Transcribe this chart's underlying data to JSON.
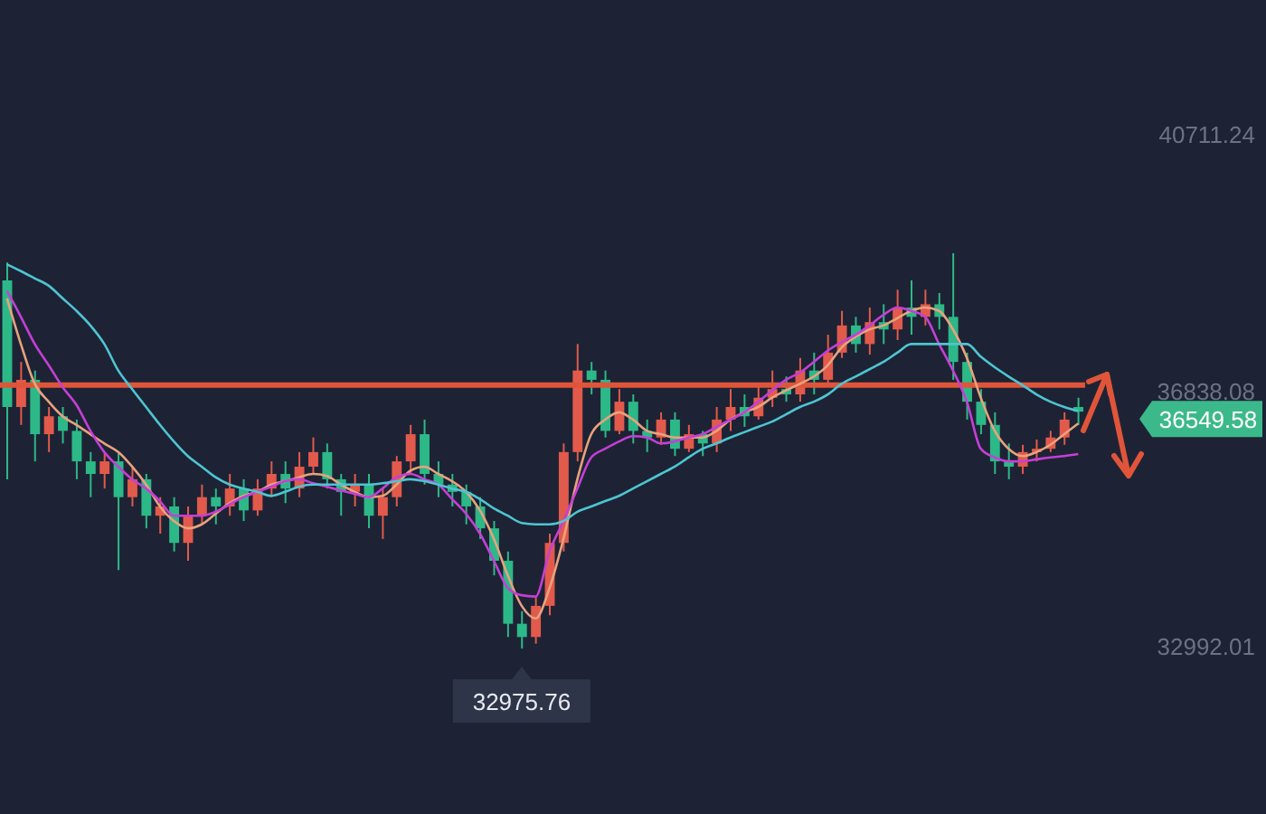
{
  "chart_data": {
    "type": "candlestick",
    "categories": [
      null,
      null,
      null,
      null,
      null,
      null,
      null,
      null,
      null,
      null,
      null,
      null,
      null,
      null,
      null,
      null,
      null,
      null,
      null,
      null,
      null,
      null,
      null,
      null,
      null,
      null,
      null,
      null,
      null,
      null,
      null,
      null,
      null,
      null,
      null,
      null,
      null,
      null,
      null,
      null,
      null,
      null,
      null,
      null,
      null,
      null,
      null,
      null,
      null,
      null,
      null,
      null,
      null,
      null,
      null,
      null,
      null,
      null,
      null,
      null,
      null,
      null,
      null,
      null,
      null,
      null,
      null,
      null,
      null,
      null,
      null,
      null,
      null,
      null,
      null,
      null,
      null,
      null
    ],
    "ohlc": [
      [
        38530,
        38800,
        35530,
        36620
      ],
      [
        36620,
        37300,
        36350,
        37030
      ],
      [
        37030,
        37170,
        35800,
        36210
      ],
      [
        36210,
        36620,
        35940,
        36480
      ],
      [
        36480,
        36620,
        36070,
        36260
      ],
      [
        36260,
        36430,
        35530,
        35800
      ],
      [
        35800,
        35940,
        35260,
        35610
      ],
      [
        35610,
        35940,
        35390,
        35800
      ],
      [
        35800,
        35940,
        34160,
        35260
      ],
      [
        35260,
        35720,
        35120,
        35530
      ],
      [
        35530,
        35610,
        34790,
        34980
      ],
      [
        34980,
        35260,
        34710,
        35120
      ],
      [
        35120,
        35260,
        34440,
        34570
      ],
      [
        34570,
        35120,
        34300,
        34980
      ],
      [
        34980,
        35450,
        34850,
        35260
      ],
      [
        35260,
        35390,
        34850,
        35120
      ],
      [
        35120,
        35610,
        34980,
        35390
      ],
      [
        35390,
        35530,
        34900,
        35060
      ],
      [
        35060,
        35530,
        34980,
        35390
      ],
      [
        35390,
        35800,
        35260,
        35610
      ],
      [
        35610,
        35800,
        35170,
        35390
      ],
      [
        35390,
        35940,
        35260,
        35720
      ],
      [
        35720,
        36160,
        35610,
        35940
      ],
      [
        35940,
        36070,
        35390,
        35530
      ],
      [
        35530,
        35610,
        34980,
        35340
      ],
      [
        35340,
        35610,
        35120,
        35450
      ],
      [
        35450,
        35610,
        34790,
        34980
      ],
      [
        34980,
        35390,
        34630,
        35260
      ],
      [
        35260,
        35880,
        35120,
        35800
      ],
      [
        35800,
        36350,
        35610,
        36210
      ],
      [
        36210,
        36430,
        35450,
        35610
      ],
      [
        35610,
        35800,
        35260,
        35450
      ],
      [
        35450,
        35610,
        35120,
        35340
      ],
      [
        35340,
        35450,
        34850,
        35120
      ],
      [
        35120,
        35260,
        34630,
        34790
      ],
      [
        34790,
        34900,
        34080,
        34300
      ],
      [
        34300,
        34440,
        33150,
        33350
      ],
      [
        33350,
        33540,
        32975.76,
        33150
      ],
      [
        33150,
        33760,
        33050,
        33620
      ],
      [
        33620,
        34710,
        33480,
        34570
      ],
      [
        34570,
        36070,
        34440,
        35940
      ],
      [
        35940,
        37570,
        35800,
        37170
      ],
      [
        37170,
        37300,
        36810,
        37030
      ],
      [
        37030,
        37170,
        36160,
        36260
      ],
      [
        36260,
        36890,
        36210,
        36700
      ],
      [
        36700,
        36810,
        36070,
        36260
      ],
      [
        36260,
        36430,
        35940,
        36160
      ],
      [
        36160,
        36540,
        36050,
        36430
      ],
      [
        36430,
        36540,
        35880,
        35990
      ],
      [
        35990,
        36350,
        35940,
        36210
      ],
      [
        36210,
        36260,
        35880,
        36070
      ],
      [
        36070,
        36620,
        35940,
        36430
      ],
      [
        36430,
        36890,
        36260,
        36620
      ],
      [
        36620,
        36810,
        36320,
        36480
      ],
      [
        36480,
        36970,
        36430,
        36760
      ],
      [
        36760,
        37170,
        36620,
        36890
      ],
      [
        36890,
        37080,
        36700,
        36810
      ],
      [
        36810,
        37360,
        36700,
        37170
      ],
      [
        37170,
        37440,
        36810,
        37030
      ],
      [
        37030,
        37710,
        36920,
        37440
      ],
      [
        37440,
        38070,
        37360,
        37850
      ],
      [
        37850,
        37980,
        37440,
        37570
      ],
      [
        37570,
        38120,
        37410,
        37900
      ],
      [
        37900,
        38170,
        37570,
        37790
      ],
      [
        37790,
        38390,
        37630,
        38120
      ],
      [
        38120,
        38530,
        37710,
        37980
      ],
      [
        37980,
        38390,
        37850,
        38170
      ],
      [
        38170,
        38340,
        37790,
        37980
      ],
      [
        37980,
        38940,
        37030,
        37300
      ],
      [
        37300,
        37440,
        36430,
        36700
      ],
      [
        36700,
        36890,
        36210,
        36350
      ],
      [
        36350,
        36540,
        35610,
        35800
      ],
      [
        35800,
        36070,
        35530,
        35720
      ],
      [
        35720,
        36050,
        35610,
        35940
      ],
      [
        35940,
        36130,
        35800,
        35990
      ],
      [
        35990,
        36260,
        35940,
        36160
      ],
      [
        36160,
        36540,
        36050,
        36430
      ],
      [
        36620,
        36760,
        36350,
        36549.58
      ]
    ],
    "series": [
      {
        "type": "line",
        "color": "#e8a27e",
        "values": [
          38260,
          37570,
          36970,
          36700,
          36480,
          36350,
          36210,
          36070,
          35940,
          35720,
          35450,
          35120,
          34900,
          34790,
          34850,
          35010,
          35170,
          35280,
          35340,
          35450,
          35500,
          35560,
          35610,
          35580,
          35450,
          35340,
          35260,
          35280,
          35450,
          35660,
          35720,
          35610,
          35500,
          35340,
          35060,
          34630,
          34080,
          33620,
          33430,
          33890,
          34630,
          35530,
          36210,
          36430,
          36540,
          36430,
          36260,
          36210,
          36160,
          36160,
          36160,
          36260,
          36430,
          36540,
          36620,
          36760,
          36870,
          36970,
          37080,
          37250,
          37520,
          37680,
          37790,
          37850,
          37960,
          38070,
          38120,
          38070,
          37790,
          37360,
          36760,
          36260,
          35990,
          35880,
          35940,
          36050,
          36210,
          36370
        ]
      },
      {
        "type": "line",
        "color": "#c43fd6",
        "values": [
          38370,
          37980,
          37570,
          37250,
          36920,
          36650,
          36260,
          35940,
          35720,
          35530,
          35390,
          35200,
          34980,
          34980,
          34980,
          35040,
          35150,
          35260,
          35340,
          35420,
          35500,
          35530,
          35470,
          35420,
          35360,
          35310,
          35260,
          35390,
          35560,
          35610,
          35530,
          35450,
          35230,
          35010,
          34710,
          34300,
          33890,
          33780,
          33760,
          34440,
          34900,
          35390,
          35860,
          35990,
          36100,
          36180,
          36160,
          36070,
          36100,
          36160,
          36210,
          36320,
          36430,
          36540,
          36700,
          36870,
          37030,
          37140,
          37300,
          37470,
          37600,
          37710,
          37850,
          38010,
          38120,
          38070,
          37980,
          37570,
          37170,
          36700,
          35990,
          35860,
          35800,
          35800,
          35830,
          35860,
          35880,
          35910
        ]
      },
      {
        "type": "line",
        "color": "#4fc4d2",
        "values": [
          38770,
          38670,
          38560,
          38450,
          38260,
          38070,
          37850,
          37570,
          37170,
          36890,
          36620,
          36350,
          36100,
          35880,
          35720,
          35560,
          35450,
          35390,
          35340,
          35280,
          35340,
          35420,
          35450,
          35450,
          35450,
          35450,
          35450,
          35470,
          35500,
          35530,
          35500,
          35450,
          35390,
          35340,
          35230,
          35090,
          34980,
          34870,
          34850,
          34850,
          34900,
          35040,
          35120,
          35200,
          35280,
          35390,
          35500,
          35610,
          35720,
          35860,
          35990,
          36070,
          36160,
          36240,
          36320,
          36400,
          36510,
          36620,
          36700,
          36810,
          36970,
          37080,
          37190,
          37300,
          37440,
          37570,
          37570,
          37570,
          37570,
          37570,
          37380,
          37220,
          37080,
          36950,
          36810,
          36700,
          36620,
          36560
        ]
      }
    ],
    "ylim": [
      30480,
      42760
    ],
    "yticks": [
      40711.24,
      36838.08,
      32992.01
    ],
    "tick_labels": "y",
    "marker": "none",
    "ref_lines": [
      {
        "axis": "y",
        "value": 36950,
        "label": null,
        "color": "#e0553a"
      }
    ],
    "annotations": [
      {
        "text": "32975.76",
        "y": 32975.76
      },
      "36549.58"
    ]
  }
}
